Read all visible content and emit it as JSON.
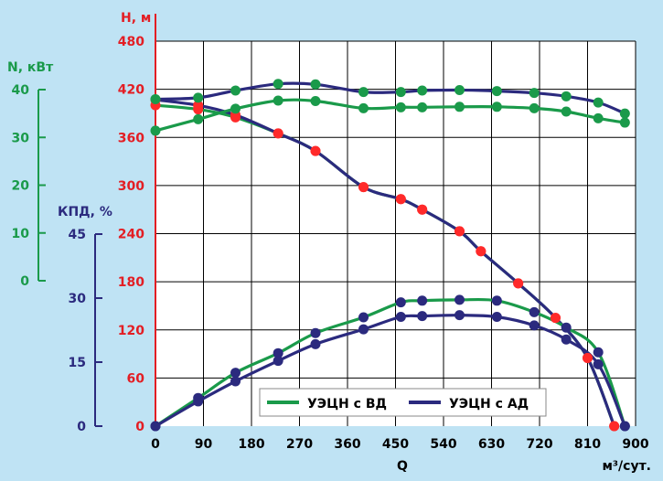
{
  "colors": {
    "background": "#bfe3f4",
    "plot_bg": "#ffffff",
    "grid": "#000000",
    "red_axis": "#e31e24",
    "green": "#1a9a4a",
    "navy": "#2b2a7e",
    "red_dot": "#ff2a2a"
  },
  "chart_data": {
    "type": "line",
    "x": {
      "label": "Q",
      "unit": "м³/сут.",
      "ticks": [
        0,
        90,
        180,
        270,
        360,
        450,
        540,
        630,
        720,
        810,
        900
      ],
      "range": [
        0,
        900
      ]
    },
    "axes": {
      "head": {
        "label": "H, м",
        "ticks": [
          0,
          60,
          120,
          180,
          240,
          300,
          360,
          420,
          480
        ],
        "range": [
          0,
          480
        ]
      },
      "power": {
        "label": "N, кВт",
        "ticks": [
          0,
          10,
          20,
          30,
          40
        ]
      },
      "efficiency": {
        "label": "КПД, %",
        "ticks": [
          0,
          15,
          30,
          45
        ]
      }
    },
    "legend": [
      {
        "label": "УЭЦН с ВД",
        "color": "#1a9a4a"
      },
      {
        "label": "УЭЦН с АД",
        "color": "#2b2a7e"
      }
    ],
    "series": [
      {
        "name": "УЭЦН с ВД",
        "quantity": "H",
        "color": "#1a9a4a",
        "markers": "red",
        "points": [
          [
            0,
            400
          ],
          [
            80,
            395
          ],
          [
            150,
            385
          ],
          [
            230,
            365
          ],
          [
            300,
            343
          ],
          [
            390,
            298
          ],
          [
            460,
            283
          ],
          [
            500,
            270
          ],
          [
            570,
            243
          ],
          [
            610,
            218
          ],
          [
            680,
            178
          ],
          [
            750,
            135
          ],
          [
            810,
            85
          ],
          [
            860,
            0
          ]
        ]
      },
      {
        "name": "УЭЦН с АД",
        "quantity": "H",
        "color": "#2b2a7e",
        "markers": "red",
        "points": [
          [
            0,
            407
          ],
          [
            80,
            400
          ],
          [
            150,
            388
          ],
          [
            230,
            365
          ],
          [
            300,
            343
          ],
          [
            390,
            298
          ],
          [
            460,
            283
          ],
          [
            500,
            270
          ],
          [
            570,
            243
          ],
          [
            610,
            218
          ],
          [
            680,
            178
          ],
          [
            750,
            135
          ],
          [
            810,
            85
          ],
          [
            860,
            0
          ]
        ]
      },
      {
        "name": "УЭЦН с ВД",
        "quantity": "N",
        "unit": "кВт",
        "color": "#1a9a4a",
        "markers": "green",
        "points": [
          [
            0,
            31.4
          ],
          [
            80,
            33.8
          ],
          [
            150,
            36.0
          ],
          [
            230,
            37.7
          ],
          [
            300,
            37.6
          ],
          [
            390,
            36.1
          ],
          [
            460,
            36.3
          ],
          [
            500,
            36.3
          ],
          [
            570,
            36.4
          ],
          [
            640,
            36.4
          ],
          [
            710,
            36.1
          ],
          [
            770,
            35.4
          ],
          [
            830,
            34.0
          ],
          [
            880,
            33.1
          ]
        ]
      },
      {
        "name": "УЭЦН с АД",
        "quantity": "N",
        "unit": "кВт",
        "color": "#2b2a7e",
        "markers": "green",
        "points": [
          [
            0,
            38.0
          ],
          [
            80,
            38.3
          ],
          [
            150,
            39.8
          ],
          [
            230,
            41.2
          ],
          [
            300,
            41.1
          ],
          [
            390,
            39.5
          ],
          [
            460,
            39.5
          ],
          [
            500,
            39.8
          ],
          [
            570,
            39.9
          ],
          [
            640,
            39.7
          ],
          [
            710,
            39.3
          ],
          [
            770,
            38.6
          ],
          [
            830,
            37.3
          ],
          [
            880,
            35.0
          ]
        ]
      },
      {
        "name": "УЭЦН с ВД",
        "quantity": "КПД",
        "unit": "%",
        "color": "#1a9a4a",
        "markers": "navy",
        "points": [
          [
            0,
            0
          ],
          [
            80,
            6.6
          ],
          [
            150,
            12.5
          ],
          [
            230,
            17.1
          ],
          [
            300,
            21.8
          ],
          [
            390,
            25.5
          ],
          [
            460,
            29.0
          ],
          [
            500,
            29.4
          ],
          [
            570,
            29.6
          ],
          [
            640,
            29.4
          ],
          [
            710,
            26.7
          ],
          [
            770,
            23.1
          ],
          [
            830,
            17.3
          ],
          [
            880,
            0
          ]
        ]
      },
      {
        "name": "УЭЦН с АД",
        "quantity": "КПД",
        "unit": "%",
        "color": "#2b2a7e",
        "markers": "navy",
        "points": [
          [
            0,
            0
          ],
          [
            80,
            5.8
          ],
          [
            150,
            10.5
          ],
          [
            230,
            15.3
          ],
          [
            300,
            19.2
          ],
          [
            390,
            22.7
          ],
          [
            460,
            25.6
          ],
          [
            500,
            25.8
          ],
          [
            570,
            26.0
          ],
          [
            640,
            25.6
          ],
          [
            710,
            23.6
          ],
          [
            770,
            20.3
          ],
          [
            830,
            14.5
          ],
          [
            880,
            0
          ]
        ]
      }
    ]
  }
}
